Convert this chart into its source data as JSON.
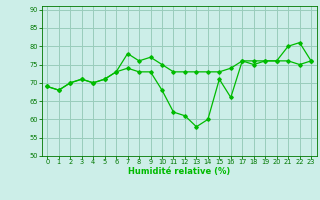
{
  "xlabel": "Humidité relative (%)",
  "xlim": [
    -0.5,
    23.5
  ],
  "ylim": [
    50,
    91
  ],
  "yticks": [
    50,
    55,
    60,
    65,
    70,
    75,
    80,
    85,
    90
  ],
  "xticks": [
    0,
    1,
    2,
    3,
    4,
    5,
    6,
    7,
    8,
    9,
    10,
    11,
    12,
    13,
    14,
    15,
    16,
    17,
    18,
    19,
    20,
    21,
    22,
    23
  ],
  "bg_color": "#cceee8",
  "grid_color": "#99ccbb",
  "line_color": "#00bb00",
  "line1_y": [
    69,
    68,
    70,
    71,
    70,
    71,
    73,
    78,
    76,
    77,
    75,
    73,
    73,
    73,
    73,
    73,
    74,
    76,
    76,
    76,
    76,
    76,
    75,
    76
  ],
  "line2_y": [
    69,
    68,
    70,
    71,
    70,
    71,
    73,
    74,
    73,
    73,
    68,
    62,
    61,
    58,
    60,
    71,
    66,
    76,
    75,
    76,
    76,
    80,
    81,
    76
  ]
}
